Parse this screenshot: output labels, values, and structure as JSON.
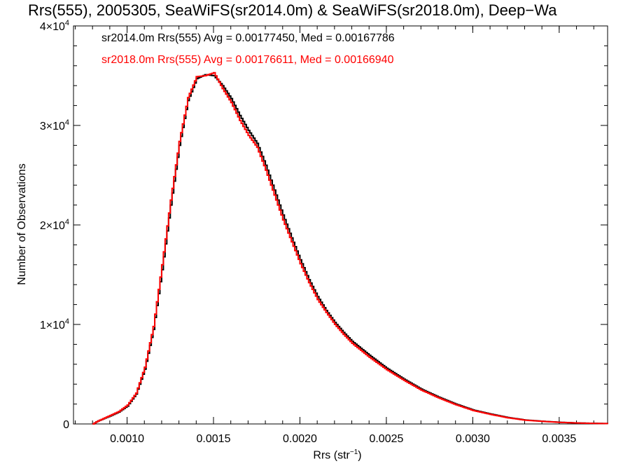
{
  "chart_data": {
    "type": "line",
    "title": "Rrs(555), 2005305, SeaWiFS(sr2014.0m) & SeaWiFS(sr2018.0m), Deep−Wa",
    "xlabel_main": "Rrs (str",
    "xlabel_sup": "−1",
    "xlabel_tail": ")",
    "ylabel": "Number of Observations",
    "xlim": [
      0.00069,
      0.00378
    ],
    "ylim": [
      0,
      40000
    ],
    "x_ticks": [
      0.001,
      0.0015,
      0.002,
      0.0025,
      0.003,
      0.0035
    ],
    "x_tick_labels": [
      "0.0010",
      "0.0015",
      "0.0020",
      "0.0025",
      "0.0030",
      "0.0035"
    ],
    "y_ticks": [
      0,
      10000,
      20000,
      30000,
      40000
    ],
    "y_tick_labels": [
      {
        "base": "0",
        "exp": ""
      },
      {
        "base": "1×10",
        "exp": "4"
      },
      {
        "base": "2×10",
        "exp": "4"
      },
      {
        "base": "3×10",
        "exp": "4"
      },
      {
        "base": "4×10",
        "exp": "4"
      }
    ],
    "series": [
      {
        "name": "sr2014.0m Rrs(555) Avg = 0.00177450, Med = 0.00167786",
        "color": "#000000",
        "x": [
          0.0008,
          0.00083,
          0.0009,
          0.00095,
          0.001,
          0.00105,
          0.0011,
          0.00115,
          0.0012,
          0.00125,
          0.0013,
          0.00135,
          0.0014,
          0.00145,
          0.0015,
          0.00155,
          0.0016,
          0.00165,
          0.0017,
          0.00175,
          0.0018,
          0.00185,
          0.0019,
          0.00195,
          0.002,
          0.00205,
          0.0021,
          0.00215,
          0.0022,
          0.00225,
          0.0023,
          0.0024,
          0.0025,
          0.0026,
          0.0027,
          0.0028,
          0.0029,
          0.003,
          0.0031,
          0.0032,
          0.0033,
          0.0034,
          0.0035,
          0.0036,
          0.0037,
          0.00378
        ],
        "y": [
          0,
          300,
          800,
          1200,
          1800,
          3000,
          5500,
          9500,
          15500,
          22000,
          28000,
          32500,
          34700,
          35100,
          35000,
          34000,
          32700,
          31000,
          29500,
          28200,
          26000,
          23500,
          21000,
          18700,
          16500,
          14500,
          12800,
          11400,
          10200,
          9200,
          8300,
          6900,
          5600,
          4500,
          3500,
          2700,
          2000,
          1400,
          1000,
          650,
          400,
          270,
          170,
          100,
          60,
          40
        ]
      },
      {
        "name": "sr2018.0m Rrs(555) Avg = 0.00176611, Med = 0.00166940",
        "color": "#ff0000",
        "x": [
          0.0008,
          0.00083,
          0.0009,
          0.00095,
          0.001,
          0.00105,
          0.0011,
          0.00115,
          0.0012,
          0.00125,
          0.0013,
          0.00135,
          0.0014,
          0.00145,
          0.0015,
          0.00155,
          0.0016,
          0.00165,
          0.0017,
          0.00175,
          0.0018,
          0.00185,
          0.0019,
          0.00195,
          0.002,
          0.00205,
          0.0021,
          0.00215,
          0.0022,
          0.00225,
          0.0023,
          0.0024,
          0.0025,
          0.0026,
          0.0027,
          0.0028,
          0.0029,
          0.003,
          0.0031,
          0.0032,
          0.0033,
          0.0034,
          0.0035,
          0.0036,
          0.0037,
          0.00378
        ],
        "y": [
          0,
          300,
          850,
          1250,
          1900,
          3100,
          5700,
          9800,
          16000,
          22500,
          28400,
          32800,
          34900,
          35000,
          35300,
          33700,
          32300,
          30500,
          29000,
          27800,
          25500,
          23000,
          20500,
          18300,
          16100,
          14200,
          12500,
          11200,
          10000,
          9000,
          8100,
          6700,
          5450,
          4380,
          3400,
          2620,
          1930,
          1350,
          960,
          620,
          380,
          260,
          160,
          95,
          55,
          35
        ]
      }
    ]
  }
}
